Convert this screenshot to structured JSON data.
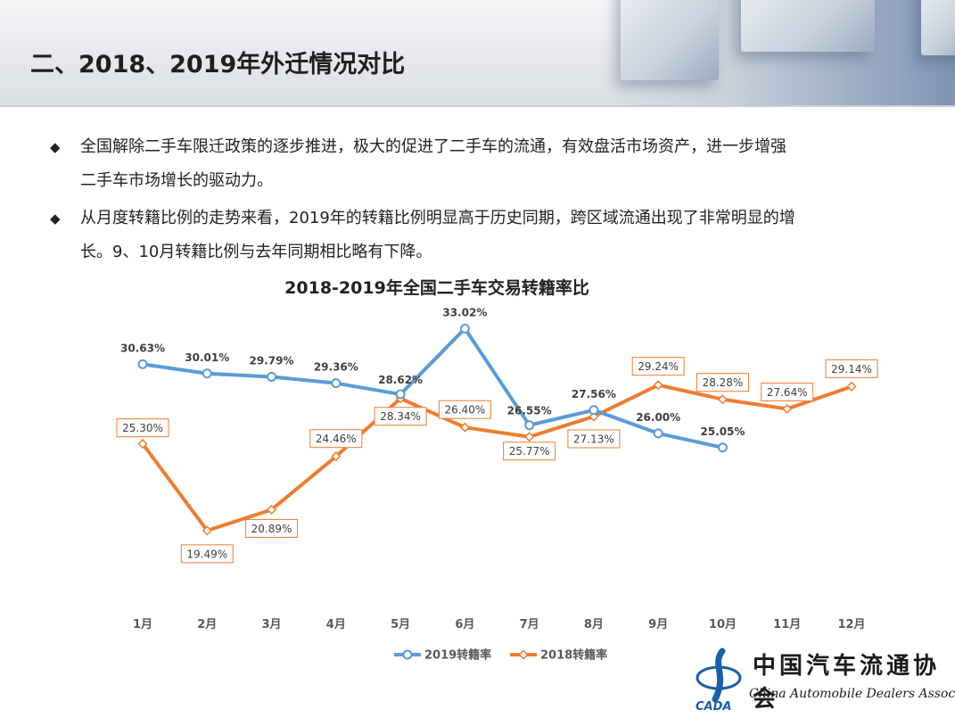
{
  "header": {
    "title": "二、2018、2019年外迁情况对比"
  },
  "bullets": [
    {
      "line1": "全国解除二手车限迁政策的逐步推进，极大的促进了二手车的流通，有效盘活市场资产，进一步增强",
      "line2": "二手车市场增长的驱动力。"
    },
    {
      "line1": "从月度转籍比例的走势来看，2019年的转籍比例明显高于历史同期，跨区域流通出现了非常明显的增",
      "line2": "长。9、10月转籍比例与去年同期相比略有下降。"
    }
  ],
  "bullet_symbol": "◆",
  "chart_data": {
    "type": "line",
    "title": "2018-2019年全国二手车交易转籍率比",
    "categories": [
      "1月",
      "2月",
      "3月",
      "4月",
      "5月",
      "6月",
      "7月",
      "8月",
      "9月",
      "10月",
      "11月",
      "12月"
    ],
    "ylim": [
      15,
      34
    ],
    "grid": false,
    "legend_position": "bottom",
    "series": [
      {
        "name": "2019转籍率",
        "color": "#5b9bd5",
        "marker": "circle",
        "values": [
          30.63,
          30.01,
          29.79,
          29.36,
          28.62,
          33.02,
          26.55,
          27.56,
          26.0,
          25.05,
          null,
          null
        ],
        "labels": [
          "30.63%",
          "30.01%",
          "29.79%",
          "29.36%",
          "28.62%",
          "33.02%",
          "26.55%",
          "27.56%",
          "26.00%",
          "25.05%",
          "",
          ""
        ]
      },
      {
        "name": "2018转籍率",
        "color": "#ed7d31",
        "marker": "diamond",
        "values": [
          25.3,
          19.49,
          20.89,
          24.46,
          28.34,
          26.4,
          25.77,
          27.13,
          29.24,
          28.28,
          27.64,
          29.14
        ],
        "labels": [
          "25.30%",
          "19.49%",
          "20.89%",
          "24.46%",
          "28.34%",
          "26.40%",
          "25.77%",
          "27.13%",
          "29.24%",
          "28.28%",
          "27.64%",
          "29.14%"
        ]
      }
    ]
  },
  "logo": {
    "name_cn": "中国汽车流通协会",
    "name_en": "China Automobile Dealers Association",
    "abbr": "CADA"
  }
}
